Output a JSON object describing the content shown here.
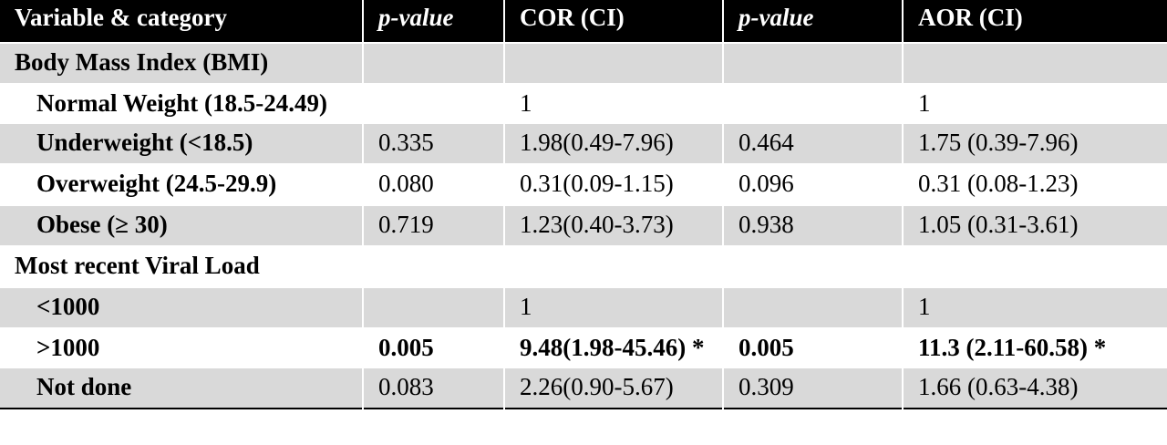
{
  "header": {
    "variable": "Variable & category",
    "p_value_1": "p-value",
    "cor": "COR (CI)",
    "p_value_2": "p-value",
    "aor": "AOR (CI)"
  },
  "rows": [
    {
      "section": "Body Mass Index (BMI)"
    },
    {
      "label": "Normal Weight (18.5-24.49)",
      "p1": "",
      "cor": "1",
      "p2": "",
      "aor": "1"
    },
    {
      "label": "Underweight (<18.5)",
      "p1": "0.335",
      "cor": "1.98(0.49-7.96)",
      "p2": "0.464",
      "aor": "1.75 (0.39-7.96)"
    },
    {
      "label": "Overweight (24.5-29.9)",
      "p1": "0.080",
      "cor": "0.31(0.09-1.15)",
      "p2": "0.096",
      "aor": "0.31 (0.08-1.23)"
    },
    {
      "label": "Obese (≥ 30)",
      "p1": "0.719",
      "cor": "1.23(0.40-3.73)",
      "p2": "0.938",
      "aor": "1.05 (0.31-3.61)"
    },
    {
      "section": "Most recent Viral Load"
    },
    {
      "label": "<1000",
      "p1": "",
      "cor": "1",
      "p2": "",
      "aor": "1"
    },
    {
      "label": ">1000",
      "p1": "0.005",
      "cor": "9.48(1.98-45.46) *",
      "p2": "0.005",
      "aor": "11.3 (2.11-60.58) *"
    },
    {
      "label": "Not done",
      "p1": "0.083",
      "cor": "2.26(0.90-5.67)",
      "p2": "0.309",
      "aor": "1.66 (0.63-4.38)"
    }
  ]
}
